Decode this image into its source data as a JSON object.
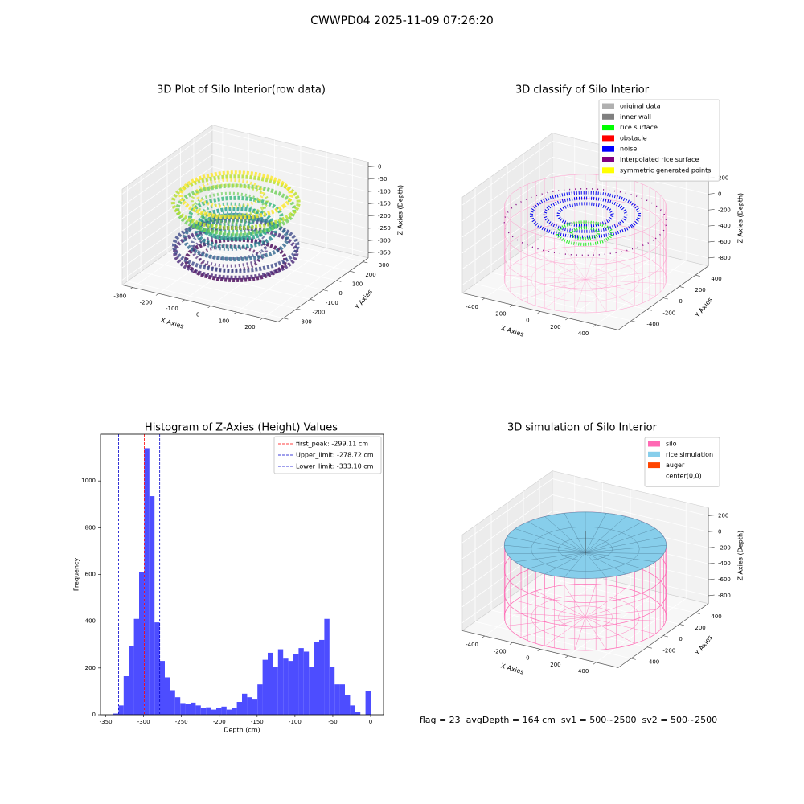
{
  "title": "CWWPD04 2025-11-09 07:26:20",
  "footer": "flag = 23  avgDepth = 164 cm  sv1 = 500~2500  sv2 = 500~2500",
  "chart_data": [
    {
      "type": "scatter3d",
      "title": "3D Plot of Silo Interior(row data)",
      "xlabel": "X Axies",
      "ylabel": "Y Axies",
      "zlabel": "Z Axies (Depth)",
      "xlim": [
        -340,
        260
      ],
      "ylim": [
        -340,
        340
      ],
      "zlim": [
        -370,
        20
      ],
      "xticks": [
        -300,
        -200,
        -100,
        0,
        100,
        200
      ],
      "yticks": [
        -300,
        -200,
        -100,
        0,
        100,
        200,
        300
      ],
      "zticks": [
        0,
        -50,
        -100,
        -150,
        -200,
        -250,
        -300,
        -350
      ]
    },
    {
      "type": "scatter3d",
      "title": "3D classify of Silo Interior",
      "xlabel": "X Axies",
      "ylabel": "Y Axies",
      "zlabel": "Z Axies (Depth)",
      "xlim": [
        -560,
        560
      ],
      "ylim": [
        -560,
        560
      ],
      "zlim": [
        -900,
        300
      ],
      "xticks": [
        -400,
        -200,
        0,
        200,
        400
      ],
      "yticks": [
        -400,
        -200,
        0,
        200,
        400
      ],
      "zticks": [
        200,
        0,
        -200,
        -400,
        -600,
        -800
      ],
      "legend_position": "upper right",
      "legend": [
        {
          "name": "original data",
          "color": "#b0b0b0"
        },
        {
          "name": "inner wall",
          "color": "#808080"
        },
        {
          "name": "rice surface",
          "color": "#00ff00"
        },
        {
          "name": "obstacle",
          "color": "#ff0000"
        },
        {
          "name": "noise",
          "color": "#0000ff"
        },
        {
          "name": "interpolated rice surface",
          "color": "#800080"
        },
        {
          "name": "symmetric generated points",
          "color": "#ffff00"
        }
      ]
    },
    {
      "type": "histogram",
      "title": "Histogram of Z-Axies (Height) Values",
      "xlabel": "Depth (cm)",
      "ylabel": "Frequency",
      "color": "#4d4dff",
      "xlim": [
        -357,
        17
      ],
      "ylim": [
        0,
        1200
      ],
      "xticks": [
        -350,
        -300,
        -250,
        -200,
        -150,
        -100,
        -50,
        0
      ],
      "yticks": [
        0,
        200,
        400,
        600,
        800,
        1000
      ],
      "bins": [
        -340,
        -333.2,
        -326.4,
        -319.6,
        -312.8,
        -306,
        -299.2,
        -292.4,
        -285.6,
        -278.8,
        -272,
        -265.2,
        -258.4,
        -251.6,
        -244.8,
        -238,
        -231.2,
        -224.4,
        -217.6,
        -210.8,
        -204,
        -197.2,
        -190.4,
        -183.6,
        -176.8,
        -170,
        -163.2,
        -156.4,
        -149.6,
        -142.8,
        -136,
        -129.2,
        -122.4,
        -115.6,
        -108.8,
        -102,
        -95.2,
        -88.4,
        -81.6,
        -74.8,
        -68,
        -61.2,
        -54.4,
        -47.6,
        -40.8,
        -34,
        -27.2,
        -20.4,
        -13.6,
        -6.8,
        0
      ],
      "values": [
        5,
        40,
        165,
        295,
        410,
        610,
        1140,
        935,
        395,
        230,
        160,
        105,
        75,
        50,
        45,
        52,
        40,
        28,
        32,
        22,
        28,
        35,
        22,
        28,
        55,
        90,
        75,
        65,
        130,
        235,
        265,
        205,
        280,
        240,
        230,
        260,
        285,
        270,
        205,
        310,
        320,
        410,
        205,
        130,
        130,
        85,
        40,
        12,
        0,
        100
      ],
      "legend_position": "upper right",
      "vlines": [
        {
          "name": "first_peak: -299.11 cm",
          "value": -299.11,
          "color": "#ff0000"
        },
        {
          "name": "Upper_limit: -278.72 cm",
          "value": -278.72,
          "color": "#0000cc"
        },
        {
          "name": "Lower_limit: -333.10 cm",
          "value": -333.1,
          "color": "#0000cc"
        }
      ]
    },
    {
      "type": "surface3d",
      "title": "3D simulation of Silo Interior",
      "xlabel": "X Axies",
      "ylabel": "Y Axies",
      "zlabel": "Z Axies (Depth)",
      "xlim": [
        -560,
        560
      ],
      "ylim": [
        -560,
        560
      ],
      "zlim": [
        -900,
        300
      ],
      "xticks": [
        -400,
        -200,
        0,
        200,
        400
      ],
      "yticks": [
        -400,
        -200,
        0,
        200,
        400
      ],
      "zticks": [
        200,
        0,
        -200,
        -400,
        -600,
        -800
      ],
      "legend_position": "upper right",
      "legend": [
        {
          "name": "silo",
          "color": "#ff69b4"
        },
        {
          "name": "rice simulation",
          "color": "#87ceeb"
        },
        {
          "name": "auger",
          "color": "#ff4500"
        },
        {
          "name": "center(0,0)",
          "color": "#ffffff"
        }
      ]
    }
  ]
}
